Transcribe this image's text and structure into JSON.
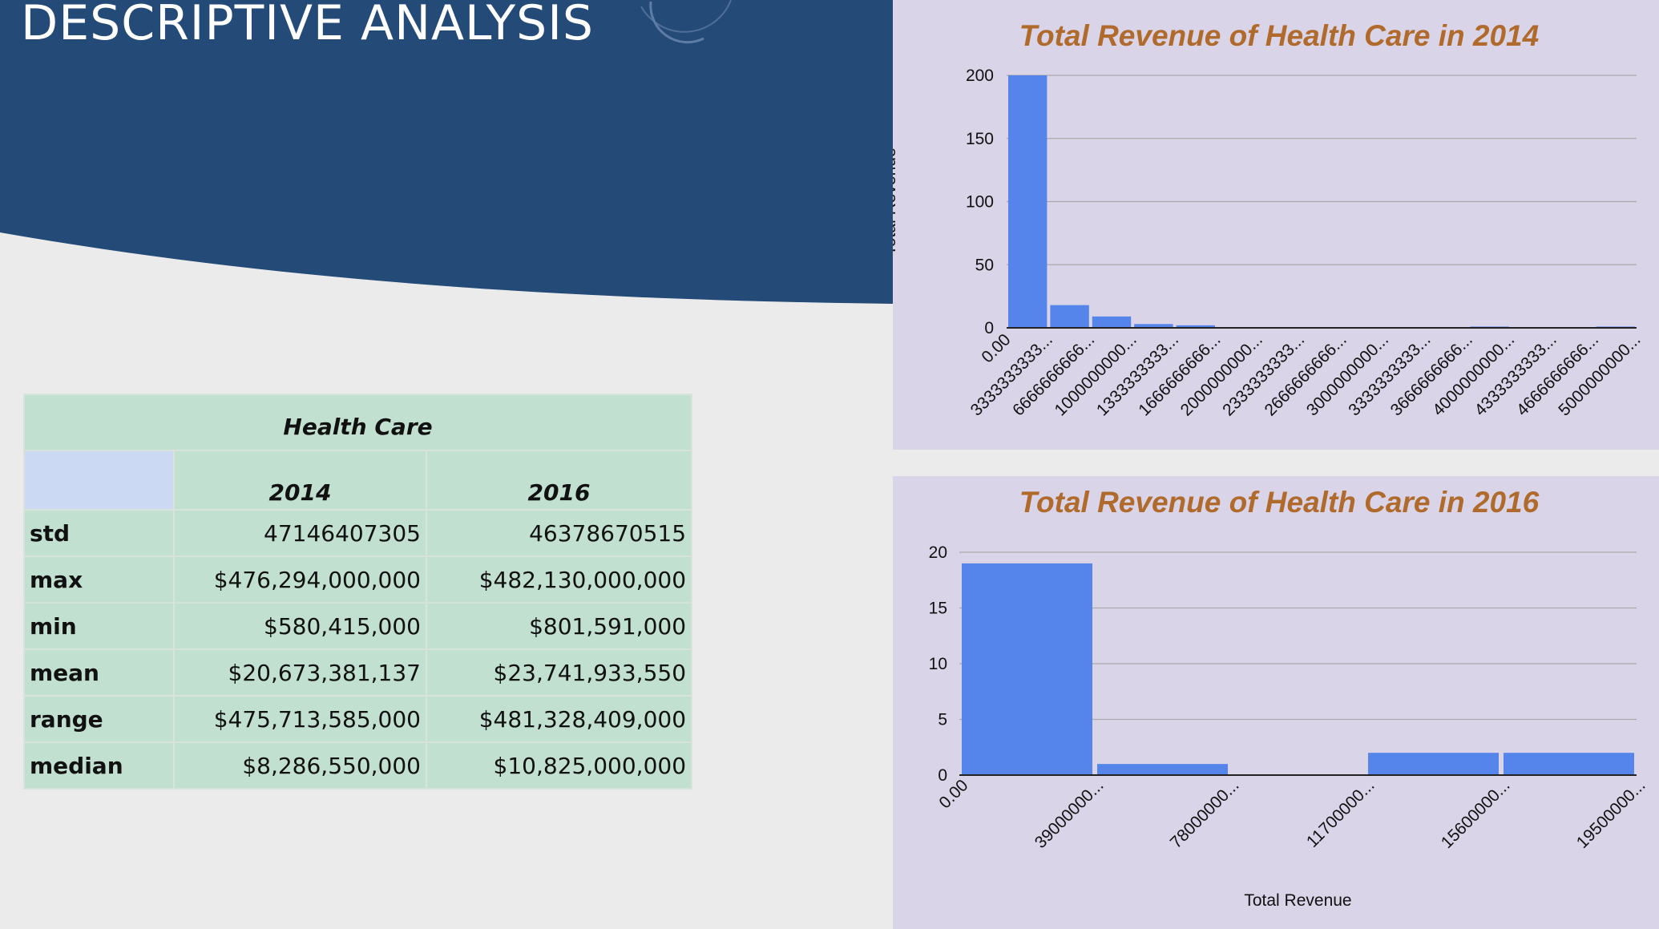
{
  "slide": {
    "title": "DESCRIPTIVE ANALYSIS"
  },
  "colors": {
    "banner": "#244a78",
    "table_cell": "#c1e0d0",
    "table_blank": "#ccd9f2",
    "panel": "#d9d4e7",
    "bar": "#5585ea",
    "chart_title": "#b06a2b"
  },
  "table": {
    "title": "Health Care",
    "columns": [
      "2014",
      "2016"
    ],
    "rows": [
      {
        "label": "std",
        "values": [
          "47146407305",
          "46378670515"
        ]
      },
      {
        "label": "max",
        "values": [
          "$476,294,000,000",
          "$482,130,000,000"
        ]
      },
      {
        "label": "min",
        "values": [
          "$580,415,000",
          "$801,591,000"
        ]
      },
      {
        "label": "mean",
        "values": [
          "$20,673,381,137",
          "$23,741,933,550"
        ]
      },
      {
        "label": "range",
        "values": [
          "$475,713,585,000",
          "$481,328,409,000"
        ]
      },
      {
        "label": "median",
        "values": [
          "$8,286,550,000",
          "$10,825,000,000"
        ]
      }
    ]
  },
  "chart_data": [
    {
      "type": "bar",
      "title": "Total Revenue of Health Care in 2014",
      "ylabel": "Total Revenue",
      "xlabel": "",
      "ylim": [
        0,
        200
      ],
      "yticks": [
        0,
        50,
        100,
        150,
        200
      ],
      "grid": true,
      "x_tick_labels": [
        "0.00",
        "3333333333...",
        "6666666666...",
        "1000000000...",
        "1333333333...",
        "1666666666...",
        "2000000000...",
        "2333333333...",
        "2666666666...",
        "3000000000...",
        "3333333333...",
        "3666666666...",
        "4000000000...",
        "4333333333...",
        "4666666666...",
        "5000000000..."
      ],
      "values": [
        200,
        18,
        9,
        3,
        2,
        0,
        0,
        0,
        0,
        0,
        0,
        1,
        0,
        0,
        1
      ]
    },
    {
      "type": "bar",
      "title": "Total Revenue of Health Care in 2016",
      "ylabel": "",
      "xlabel": "Total Revenue",
      "ylim": [
        0,
        20
      ],
      "yticks": [
        0,
        5,
        10,
        15,
        20
      ],
      "grid": true,
      "x_tick_labels": [
        "0.00",
        "39000000...",
        "78000000...",
        "11700000...",
        "15600000...",
        "19500000..."
      ],
      "values": [
        19,
        1,
        0,
        2,
        2
      ]
    }
  ]
}
